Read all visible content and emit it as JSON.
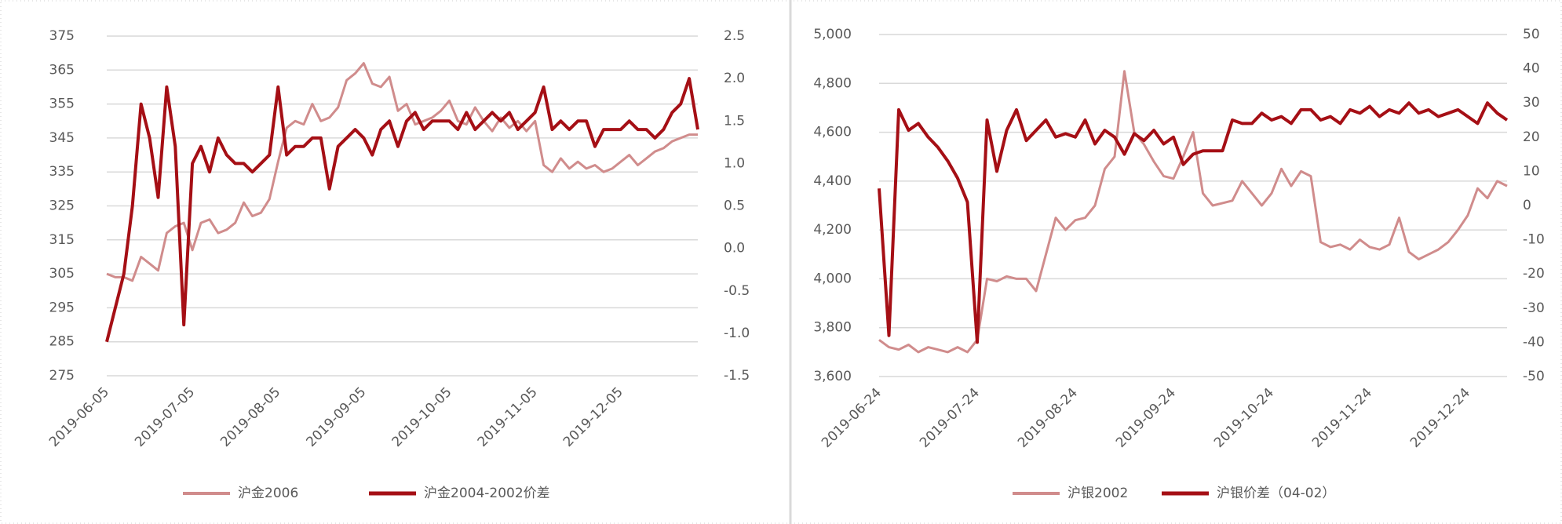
{
  "chart_data": [
    {
      "type": "line",
      "categories": [
        "2019-06-05",
        null,
        null,
        null,
        null,
        null,
        null,
        null,
        null,
        null,
        "2019-07-05",
        null,
        null,
        null,
        null,
        null,
        null,
        null,
        null,
        null,
        "2019-08-05",
        null,
        null,
        null,
        null,
        null,
        null,
        null,
        null,
        null,
        "2019-09-05",
        null,
        null,
        null,
        null,
        null,
        null,
        null,
        null,
        null,
        "2019-10-05",
        null,
        null,
        null,
        null,
        null,
        null,
        null,
        null,
        null,
        "2019-11-05",
        null,
        null,
        null,
        null,
        null,
        null,
        null,
        null,
        null,
        "2019-12-05",
        null,
        null,
        null,
        null,
        null,
        null,
        null,
        null,
        null
      ],
      "series": [
        {
          "name": "沪金2006",
          "color": "#d08c8c",
          "axis": "y",
          "values": [
            305,
            304,
            304,
            303,
            310,
            308,
            306,
            317,
            319,
            320,
            312,
            320,
            321,
            317,
            318,
            320,
            326,
            322,
            323,
            327,
            338,
            348,
            350,
            349,
            355,
            350,
            351,
            354,
            362,
            364,
            367,
            361,
            360,
            363,
            353,
            355,
            349,
            350,
            351,
            353,
            356,
            350,
            349,
            354,
            350,
            347,
            351,
            348,
            350,
            347,
            350,
            337,
            335,
            339,
            336,
            338,
            336,
            337,
            335,
            336,
            338,
            340,
            337,
            339,
            341,
            342,
            344,
            345,
            346,
            346
          ]
        },
        {
          "name": "沪金2004-2002价差",
          "color": "#a50f15",
          "axis": "y2",
          "values": [
            -1.1,
            -0.7,
            -0.3,
            0.5,
            1.7,
            1.3,
            0.6,
            1.9,
            1.2,
            -0.9,
            1.0,
            1.2,
            0.9,
            1.3,
            1.1,
            1.0,
            1.0,
            0.9,
            1.0,
            1.1,
            1.9,
            1.1,
            1.2,
            1.2,
            1.3,
            1.3,
            0.7,
            1.2,
            1.3,
            1.4,
            1.3,
            1.1,
            1.4,
            1.5,
            1.2,
            1.5,
            1.6,
            1.4,
            1.5,
            1.5,
            1.5,
            1.4,
            1.6,
            1.4,
            1.5,
            1.6,
            1.5,
            1.6,
            1.4,
            1.5,
            1.6,
            1.9,
            1.4,
            1.5,
            1.4,
            1.5,
            1.5,
            1.2,
            1.4,
            1.4,
            1.4,
            1.5,
            1.4,
            1.4,
            1.3,
            1.4,
            1.6,
            1.7,
            2.0,
            1.4
          ]
        }
      ],
      "ylim": [
        275,
        375
      ],
      "yticks": [
        275,
        285,
        295,
        305,
        315,
        325,
        335,
        345,
        355,
        365,
        375
      ],
      "y2lim": [
        -1.5,
        2.5
      ],
      "y2ticks": [
        -1.5,
        {
          "value": -1,
          "label": "-1.0"
        },
        -0.5,
        {
          "value": 0,
          "label": "0.0"
        },
        0.5,
        {
          "value": 1,
          "label": "1.0"
        },
        1.5,
        {
          "value": 2,
          "label": "2.0"
        },
        2.5
      ],
      "grid": true,
      "legend": "bottom"
    },
    {
      "type": "line",
      "categories": [
        "2019-06-24",
        null,
        null,
        null,
        null,
        null,
        null,
        null,
        null,
        null,
        "2019-07-24",
        null,
        null,
        null,
        null,
        null,
        null,
        null,
        null,
        null,
        "2019-08-24",
        null,
        null,
        null,
        null,
        null,
        null,
        null,
        null,
        null,
        "2019-09-24",
        null,
        null,
        null,
        null,
        null,
        null,
        null,
        null,
        null,
        "2019-10-24",
        null,
        null,
        null,
        null,
        null,
        null,
        null,
        null,
        null,
        "2019-11-24",
        null,
        null,
        null,
        null,
        null,
        null,
        null,
        null,
        null,
        "2019-12-24",
        null,
        null,
        null,
        null
      ],
      "series": [
        {
          "name": "沪银2002",
          "color": "#d08c8c",
          "axis": "y",
          "values": [
            3750,
            3720,
            3710,
            3730,
            3700,
            3720,
            3710,
            3700,
            3720,
            3700,
            3750,
            4000,
            3990,
            4010,
            4000,
            4000,
            3950,
            4100,
            4250,
            4200,
            4240,
            4250,
            4300,
            4450,
            4500,
            4850,
            4600,
            4550,
            4480,
            4420,
            4410,
            4500,
            4600,
            4350,
            4300,
            4310,
            4320,
            4400,
            4350,
            4300,
            4350,
            4450,
            4380,
            4440,
            4420,
            4150,
            4130,
            4140,
            4120,
            4160,
            4130,
            4120,
            4140,
            4250,
            4110,
            4080,
            4100,
            4120,
            4150,
            4200,
            4260,
            4370,
            4330,
            4400,
            4380
          ]
        },
        {
          "name": "沪银价差（04-02）",
          "color": "#a50f15",
          "axis": "y2",
          "values": [
            5,
            -38,
            28,
            22,
            24,
            20,
            17,
            13,
            8,
            1,
            -40,
            25,
            10,
            22,
            28,
            19,
            22,
            25,
            20,
            21,
            20,
            25,
            18,
            22,
            20,
            15,
            21,
            19,
            22,
            18,
            20,
            12,
            15,
            16,
            16,
            16,
            25,
            24,
            24,
            27,
            25,
            26,
            24,
            28,
            28,
            25,
            26,
            24,
            28,
            27,
            29,
            26,
            28,
            27,
            30,
            27,
            28,
            26,
            27,
            28,
            26,
            24,
            30,
            27,
            25
          ]
        }
      ],
      "ylim": [
        3600,
        5000
      ],
      "yticks": [
        {
          "value": 3600,
          "label": "3,600"
        },
        {
          "value": 3800,
          "label": "3,800"
        },
        {
          "value": 4000,
          "label": "4,000"
        },
        {
          "value": 4200,
          "label": "4,200"
        },
        {
          "value": 4400,
          "label": "4,400"
        },
        {
          "value": 4600,
          "label": "4,600"
        },
        {
          "value": 4800,
          "label": "4,800"
        },
        {
          "value": 5000,
          "label": "5,000"
        }
      ],
      "y2lim": [
        -50,
        50
      ],
      "y2ticks": [
        -50,
        -40,
        -30,
        -20,
        -10,
        0,
        10,
        20,
        30,
        40,
        50
      ],
      "grid": true,
      "legend": "bottom"
    }
  ]
}
